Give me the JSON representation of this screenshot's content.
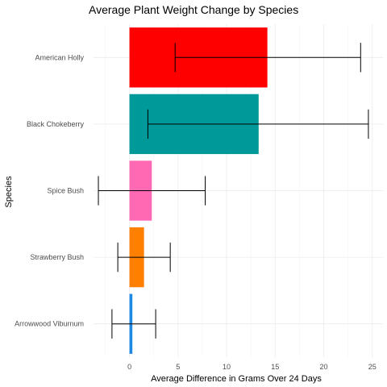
{
  "chart_data": {
    "type": "bar",
    "orientation": "horizontal",
    "title": "Average Plant Weight Change by Species",
    "xlabel": "Average Difference in Grams Over 24 Days",
    "ylabel": "Species",
    "xlim": [
      -3.7,
      26.1
    ],
    "x_ticks": [
      0,
      5,
      10,
      15,
      20,
      25
    ],
    "grid": true,
    "legend": "none",
    "categories": [
      "American Holly",
      "Black Chokeberry",
      "Spice Bush",
      "Strawberry Bush",
      "Arrowwood Viburnum"
    ],
    "values": [
      14.2,
      13.3,
      2.3,
      1.5,
      0.3
    ],
    "error_low": [
      4.7,
      1.9,
      -3.2,
      -1.2,
      -1.8
    ],
    "error_high": [
      23.8,
      24.6,
      7.8,
      4.2,
      2.7
    ],
    "colors": [
      "#ff0000",
      "#009999",
      "#ff69b4",
      "#ff7f00",
      "#1e88e5"
    ]
  }
}
